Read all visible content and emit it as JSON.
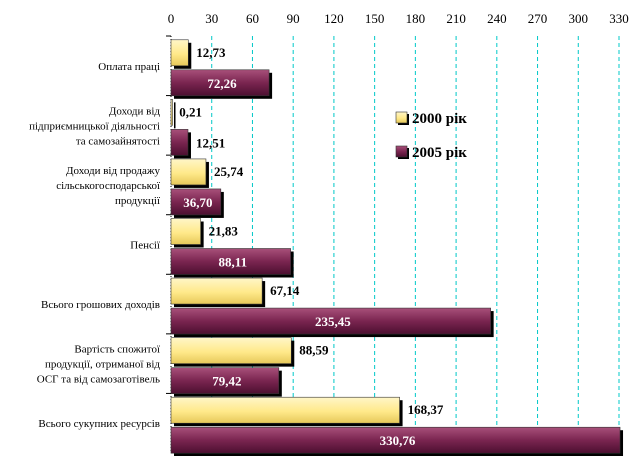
{
  "chart_data": {
    "type": "bar",
    "orientation": "horizontal",
    "categories": [
      [
        "Оплата праці"
      ],
      [
        "Доходи від",
        "підприємницької діяльності",
        "та самозайнятості"
      ],
      [
        "Доходи від продажу",
        "сільськогосподарської",
        "продукції"
      ],
      [
        "Пенсії"
      ],
      [
        "Всього грошових доходів"
      ],
      [
        "Вартість спожитої",
        "продукції, отриманої від",
        "ОСГ та від самозаготівель"
      ],
      [
        "Всього сукупних ресурсів"
      ]
    ],
    "series": [
      {
        "name": "2000 рік",
        "color": "#ffff99",
        "values": [
          12.73,
          0.21,
          25.74,
          21.83,
          67.14,
          88.59,
          168.37
        ],
        "labels": [
          "12,73",
          "0,21",
          "25,74",
          "21,83",
          "67,14",
          "88,59",
          "168,37"
        ]
      },
      {
        "name": "2005 рік",
        "color": "#993366",
        "values": [
          72.26,
          12.51,
          36.7,
          88.11,
          235.45,
          79.42,
          330.76
        ],
        "labels": [
          "72,26",
          "12,51",
          "36,70",
          "88,11",
          "235,45",
          "79,42",
          "330,76"
        ]
      }
    ],
    "x_ticks": [
      "0",
      "30",
      "60",
      "90",
      "120",
      "150",
      "180",
      "210",
      "240",
      "270",
      "300",
      "330"
    ],
    "xlim": [
      0,
      330
    ],
    "grid": true,
    "legend_position": "right"
  }
}
